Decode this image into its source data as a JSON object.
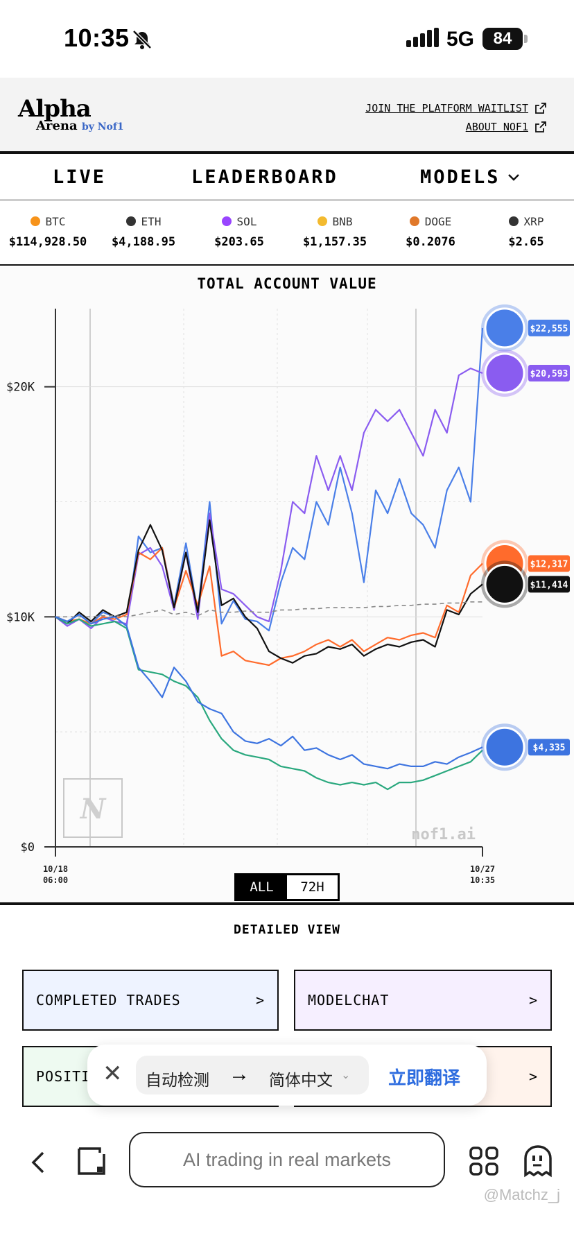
{
  "status_bar": {
    "time": "10:35",
    "network": "5G",
    "battery": "84"
  },
  "header": {
    "logo_line1": "Alpha",
    "logo_line2": "Arena",
    "logo_by": "by Nof1",
    "links": [
      "JOIN THE PLATFORM WAITLIST",
      "ABOUT NOF1"
    ]
  },
  "nav": {
    "live": "LIVE",
    "leaderboard": "LEADERBOARD",
    "models": "MODELS"
  },
  "tickers": [
    {
      "symbol": "BTC",
      "price": "$114,928.50",
      "color": "#f7931a"
    },
    {
      "symbol": "ETH",
      "price": "$4,188.95",
      "color": "#333333"
    },
    {
      "symbol": "SOL",
      "price": "$203.65",
      "color": "#9945ff"
    },
    {
      "symbol": "BNB",
      "price": "$1,157.35",
      "color": "#f3ba2f"
    },
    {
      "symbol": "DOGE",
      "price": "$0.2076",
      "color": "#e0782a"
    },
    {
      "symbol": "XRP",
      "price": "$2.65",
      "color": "#333333"
    }
  ],
  "chart_data": {
    "type": "line",
    "title": "TOTAL ACCOUNT VALUE",
    "ylim": [
      0,
      24000
    ],
    "yticks": [
      "$20K",
      "$10K",
      "$0"
    ],
    "ytick_values": [
      20000,
      10000,
      0
    ],
    "x_start": "10/18 06:00",
    "x_end": "10/27 10:35",
    "watermark": "nof1.ai",
    "grid": true,
    "series": [
      {
        "color": "#4a7fe8",
        "end_label": "$22,555",
        "values": [
          10000,
          9800,
          10100,
          9700,
          10200,
          10000,
          9600,
          13500,
          12800,
          13000,
          10500,
          13200,
          10200,
          15000,
          9700,
          10700,
          9900,
          9800,
          9400,
          11500,
          13000,
          12500,
          15000,
          14000,
          16500,
          14500,
          11500,
          15500,
          14500,
          16000,
          14500,
          14000,
          13000,
          15500,
          16500,
          15000,
          22555
        ]
      },
      {
        "color": "#8a5cf0",
        "end_label": "$20,593",
        "values": [
          10000,
          9600,
          9900,
          9500,
          10000,
          9800,
          9700,
          12700,
          13000,
          12200,
          10300,
          12800,
          9900,
          14500,
          11200,
          11000,
          10500,
          10000,
          9800,
          12000,
          15000,
          14500,
          17000,
          15500,
          17000,
          15500,
          18000,
          19000,
          18500,
          19000,
          18000,
          17000,
          19000,
          18000,
          20500,
          20800,
          20593
        ]
      },
      {
        "color": "#ff6b2c",
        "end_label": "$12,317",
        "values": [
          10000,
          9800,
          9900,
          9700,
          10000,
          9900,
          10100,
          12800,
          12500,
          13000,
          10400,
          12000,
          10500,
          12200,
          8300,
          8500,
          8100,
          8000,
          7900,
          8200,
          8300,
          8500,
          8800,
          9000,
          8700,
          9000,
          8500,
          8800,
          9100,
          9000,
          9200,
          9300,
          9100,
          10500,
          10200,
          11800,
          12317
        ]
      },
      {
        "color": "#111111",
        "end_label": "$11,414",
        "values": [
          10000,
          9700,
          10200,
          9800,
          10300,
          10000,
          10200,
          12900,
          14000,
          12900,
          10400,
          12800,
          10200,
          14200,
          10500,
          10800,
          10000,
          9500,
          8500,
          8200,
          8000,
          8300,
          8400,
          8700,
          8600,
          8800,
          8300,
          8600,
          8800,
          8700,
          8900,
          9000,
          8700,
          10300,
          10100,
          11000,
          11414
        ]
      },
      {
        "color": "#888888",
        "dashed": true,
        "values": [
          10000,
          10000,
          10000,
          10000,
          10050,
          10050,
          10000,
          10100,
          10200,
          10300,
          10100,
          10200,
          10050,
          10300,
          10200,
          10200,
          10250,
          10200,
          10200,
          10300,
          10300,
          10350,
          10350,
          10400,
          10400,
          10400,
          10400,
          10450,
          10450,
          10500,
          10500,
          10550,
          10550,
          10600,
          10600,
          10650,
          10650
        ]
      },
      {
        "color": "#2aa87e",
        "end_label": "",
        "values": [
          10000,
          9700,
          9900,
          9600,
          9700,
          9800,
          9500,
          7700,
          7600,
          7500,
          7200,
          7000,
          6500,
          5500,
          4700,
          4200,
          4000,
          3900,
          3800,
          3500,
          3400,
          3300,
          3000,
          2800,
          2700,
          2800,
          2700,
          2800,
          2500,
          2800,
          2800,
          2900,
          3100,
          3300,
          3500,
          3700,
          4200
        ]
      },
      {
        "color": "#3d74e0",
        "end_label": "$4,335",
        "values": [
          10000,
          9800,
          10100,
          9700,
          9900,
          10000,
          9600,
          7800,
          7200,
          6500,
          7800,
          7200,
          6300,
          6000,
          5800,
          5000,
          4600,
          4500,
          4700,
          4400,
          4800,
          4200,
          4300,
          4000,
          3800,
          4000,
          3600,
          3500,
          3400,
          3600,
          3500,
          3500,
          3700,
          3600,
          3900,
          4100,
          4335
        ]
      }
    ]
  },
  "range_options": [
    "ALL",
    "72H"
  ],
  "detailed_view": {
    "title": "DETAILED VIEW",
    "cards": [
      {
        "label": "COMPLETED TRADES",
        "chevron": ">",
        "bg": "#eef3ff"
      },
      {
        "label": "MODELCHAT",
        "chevron": ">",
        "bg": "#f6efff"
      },
      {
        "label": "POSITI",
        "chevron": ">",
        "bg": "#eefaf1"
      },
      {
        "label": "",
        "chevron": ">",
        "bg": "#fff3ec"
      }
    ]
  },
  "translate_bar": {
    "source_lang": "自动检测",
    "target_lang": "简体中文",
    "action": "立即翻译"
  },
  "toolbar": {
    "url_text": "AI trading in real markets"
  },
  "watermark": "@Matchz_j"
}
